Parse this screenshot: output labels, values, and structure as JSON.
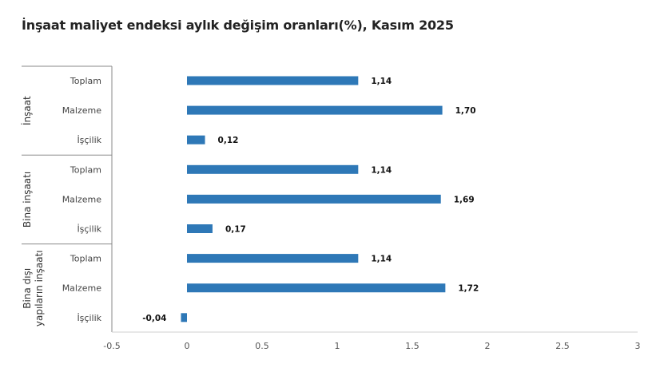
{
  "chart_data": {
    "type": "bar",
    "orientation": "horizontal",
    "title": "İnşaat maliyet endeksi aylık değişim oranları(%), Kasım 2025",
    "xlabel": "",
    "ylabel": "",
    "xlim": [
      -0.5,
      3
    ],
    "x_ticks": [
      "-0.5",
      "0",
      "0.5",
      "1",
      "1.5",
      "2",
      "2.5",
      "3"
    ],
    "x_tick_values": [
      -0.5,
      0,
      0.5,
      1,
      1.5,
      2,
      2.5,
      3
    ],
    "grid": false,
    "bar_color": "#2E78B7",
    "groups": [
      {
        "name": "İnşaat",
        "categories": [
          "Toplam",
          "Malzeme",
          "İşçilik"
        ],
        "values": [
          1.14,
          1.7,
          0.12
        ],
        "labels": [
          "1,14",
          "1,70",
          "0,12"
        ]
      },
      {
        "name": "Bina inşaatı",
        "categories": [
          "Toplam",
          "Malzeme",
          "İşçilik"
        ],
        "values": [
          1.14,
          1.69,
          0.17
        ],
        "labels": [
          "1,14",
          "1,69",
          "0,17"
        ]
      },
      {
        "name": "Bina dışı yapıların inşaatı",
        "name_lines": [
          "Bina dışı",
          "yapıların inşaatı"
        ],
        "categories": [
          "Toplam",
          "Malzeme",
          "İşçilik"
        ],
        "values": [
          1.14,
          1.72,
          -0.04
        ],
        "labels": [
          "1,14",
          "1,72",
          "-0,04"
        ]
      }
    ]
  }
}
